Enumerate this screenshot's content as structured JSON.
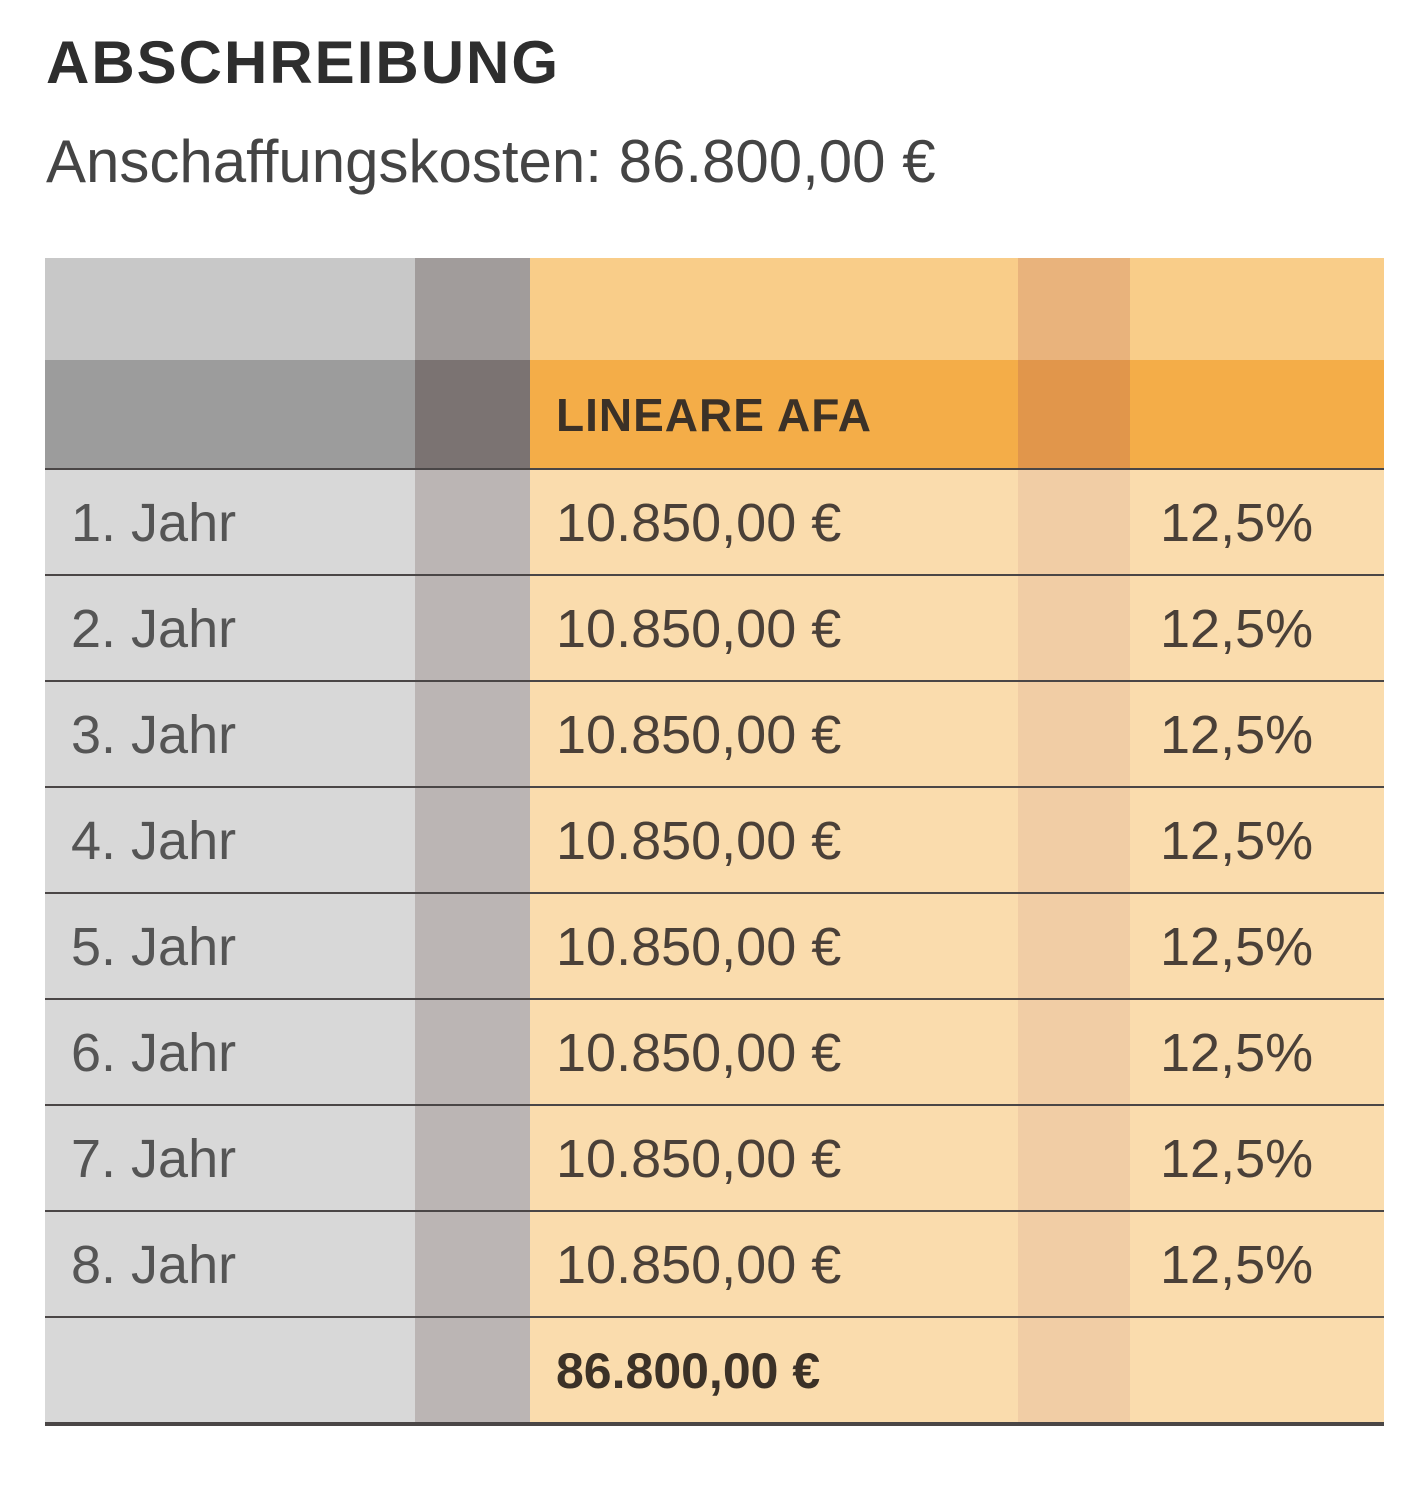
{
  "header": {
    "title": "ABSCHREIBUNG",
    "subtitle": "Anschaffungskosten: 86.800,00 €"
  },
  "table": {
    "column_header": "LINEARE AFA",
    "rows": [
      {
        "label": "1. Jahr",
        "amount": "10.850,00 €",
        "percent": "12,5%"
      },
      {
        "label": "2. Jahr",
        "amount": "10.850,00 €",
        "percent": "12,5%"
      },
      {
        "label": "3. Jahr",
        "amount": "10.850,00 €",
        "percent": "12,5%"
      },
      {
        "label": "4. Jahr",
        "amount": "10.850,00 €",
        "percent": "12,5%"
      },
      {
        "label": "5. Jahr",
        "amount": "10.850,00 €",
        "percent": "12,5%"
      },
      {
        "label": "6. Jahr",
        "amount": "10.850,00 €",
        "percent": "12,5%"
      },
      {
        "label": "7. Jahr",
        "amount": "10.850,00 €",
        "percent": "12,5%"
      },
      {
        "label": "8. Jahr",
        "amount": "10.850,00 €",
        "percent": "12,5%"
      }
    ],
    "total": "86.800,00 €"
  },
  "colors": {
    "orange_header": "#f4ad48",
    "orange_light": "#fadcad",
    "gray_light": "#d8d8d8",
    "rule": "#4a4646"
  }
}
